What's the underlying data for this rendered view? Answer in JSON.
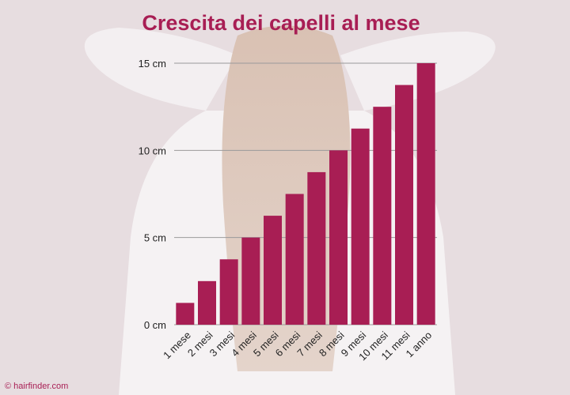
{
  "colors": {
    "bar": "#a81e54",
    "background": "#e7dde0"
  },
  "credit": "© hairfinder.com",
  "chart_data": {
    "type": "bar",
    "title": "Crescita dei capelli al mese",
    "xlabel": "",
    "ylabel": "",
    "ylim": [
      0,
      15
    ],
    "yticks": [
      {
        "value": 0,
        "label": "0 cm"
      },
      {
        "value": 5,
        "label": "5 cm"
      },
      {
        "value": 10,
        "label": "10 cm"
      },
      {
        "value": 15,
        "label": "15 cm"
      }
    ],
    "grid": true,
    "categories": [
      "1 mese",
      "2 mesi",
      "3 mesi",
      "4 mesi",
      "5 mesi",
      "6 mesi",
      "7 mesi",
      "8 mesi",
      "9 mesi",
      "10 mesi",
      "11 mesi",
      "1 anno"
    ],
    "values": [
      1.25,
      2.5,
      3.75,
      5,
      6.25,
      7.5,
      8.75,
      10,
      11.25,
      12.5,
      13.75,
      15
    ]
  }
}
